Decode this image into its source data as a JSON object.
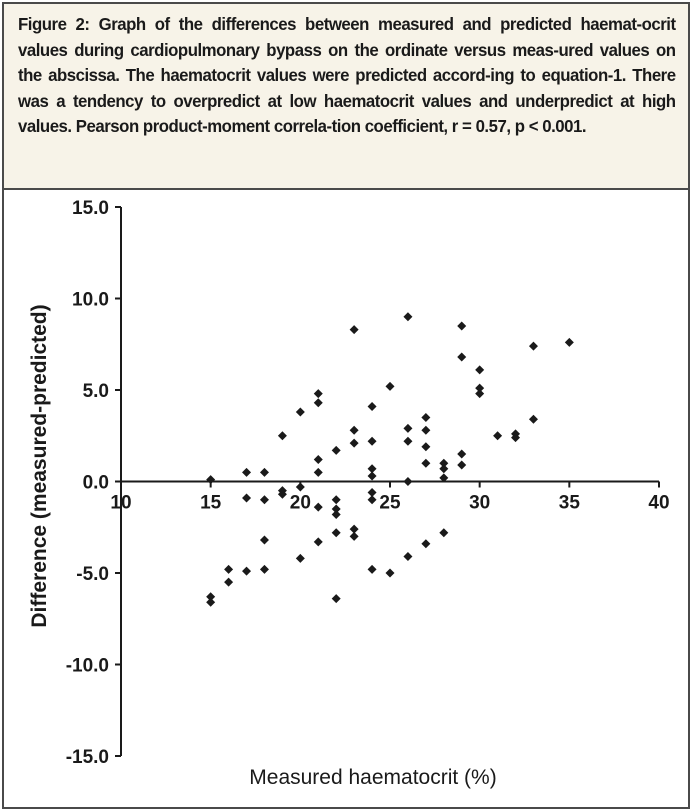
{
  "figure": {
    "caption": "Figure 2: Graph of the differences between measured and predicted haemat-ocrit values during cardiopulmonary bypass on the ordinate versus meas-ured values on the abscissa. The haematocrit values were predicted accord-ing to equation-1. There was a tendency to overpredict at low haematocrit values and underpredict at high values. Pearson product-moment correla-tion coefficient, r = 0.57, p < 0.001."
  },
  "chart_data": {
    "type": "scatter",
    "title": "",
    "xlabel": "Measured haematocrit (%)",
    "ylabel": "Difference (measured-predicted)",
    "xlim": [
      10,
      40
    ],
    "ylim": [
      -15,
      15
    ],
    "x_ticks": [
      "10",
      "15",
      "20",
      "25",
      "30",
      "35",
      "40"
    ],
    "y_ticks": [
      "15.0",
      "10.0",
      "5.0",
      "0.0",
      "-5.0",
      "-10.0",
      "-15.0"
    ],
    "grid": false,
    "marker_color": "#1a1a1a",
    "points": [
      {
        "x": 15,
        "y": 0.1
      },
      {
        "x": 15,
        "y": -6.3
      },
      {
        "x": 15,
        "y": -6.6
      },
      {
        "x": 16,
        "y": -4.8
      },
      {
        "x": 16,
        "y": -5.5
      },
      {
        "x": 17,
        "y": 0.5
      },
      {
        "x": 17,
        "y": -0.9
      },
      {
        "x": 17,
        "y": -4.9
      },
      {
        "x": 18,
        "y": 0.5
      },
      {
        "x": 18,
        "y": -1.0
      },
      {
        "x": 18,
        "y": -3.2
      },
      {
        "x": 18,
        "y": -4.8
      },
      {
        "x": 19,
        "y": 2.5
      },
      {
        "x": 19,
        "y": -0.5
      },
      {
        "x": 19,
        "y": -0.7
      },
      {
        "x": 20,
        "y": 3.8
      },
      {
        "x": 20,
        "y": -0.3
      },
      {
        "x": 20,
        "y": -4.2
      },
      {
        "x": 21,
        "y": 4.8
      },
      {
        "x": 21,
        "y": 4.3
      },
      {
        "x": 21,
        "y": 1.2
      },
      {
        "x": 21,
        "y": 0.5
      },
      {
        "x": 21,
        "y": -1.4
      },
      {
        "x": 21,
        "y": -3.3
      },
      {
        "x": 22,
        "y": 1.7
      },
      {
        "x": 22,
        "y": -1.0
      },
      {
        "x": 22,
        "y": -1.5
      },
      {
        "x": 22,
        "y": -1.8
      },
      {
        "x": 22,
        "y": -2.8
      },
      {
        "x": 22,
        "y": -6.4
      },
      {
        "x": 23,
        "y": 8.3
      },
      {
        "x": 23,
        "y": 2.8
      },
      {
        "x": 23,
        "y": 2.1
      },
      {
        "x": 23,
        "y": -2.6
      },
      {
        "x": 23,
        "y": -3.0
      },
      {
        "x": 24,
        "y": 4.1
      },
      {
        "x": 24,
        "y": 2.2
      },
      {
        "x": 24,
        "y": 0.7
      },
      {
        "x": 24,
        "y": 0.3
      },
      {
        "x": 24,
        "y": -0.6
      },
      {
        "x": 24,
        "y": -1.0
      },
      {
        "x": 24,
        "y": -4.8
      },
      {
        "x": 25,
        "y": 5.2
      },
      {
        "x": 25,
        "y": -5.0
      },
      {
        "x": 26,
        "y": 9.0
      },
      {
        "x": 26,
        "y": 2.9
      },
      {
        "x": 26,
        "y": 2.2
      },
      {
        "x": 26,
        "y": 0.0
      },
      {
        "x": 26,
        "y": -4.1
      },
      {
        "x": 27,
        "y": 3.5
      },
      {
        "x": 27,
        "y": 2.8
      },
      {
        "x": 27,
        "y": 1.9
      },
      {
        "x": 27,
        "y": 1.0
      },
      {
        "x": 27,
        "y": -3.4
      },
      {
        "x": 28,
        "y": 1.0
      },
      {
        "x": 28,
        "y": 0.7
      },
      {
        "x": 28,
        "y": 0.2
      },
      {
        "x": 28,
        "y": -2.8
      },
      {
        "x": 29,
        "y": 8.5
      },
      {
        "x": 29,
        "y": 6.8
      },
      {
        "x": 29,
        "y": 1.5
      },
      {
        "x": 29,
        "y": 0.9
      },
      {
        "x": 30,
        "y": 6.1
      },
      {
        "x": 30,
        "y": 5.1
      },
      {
        "x": 30,
        "y": 4.8
      },
      {
        "x": 31,
        "y": 2.5
      },
      {
        "x": 32,
        "y": 2.6
      },
      {
        "x": 32,
        "y": 2.4
      },
      {
        "x": 33,
        "y": 7.4
      },
      {
        "x": 33,
        "y": 3.4
      },
      {
        "x": 35,
        "y": 7.6
      }
    ]
  }
}
